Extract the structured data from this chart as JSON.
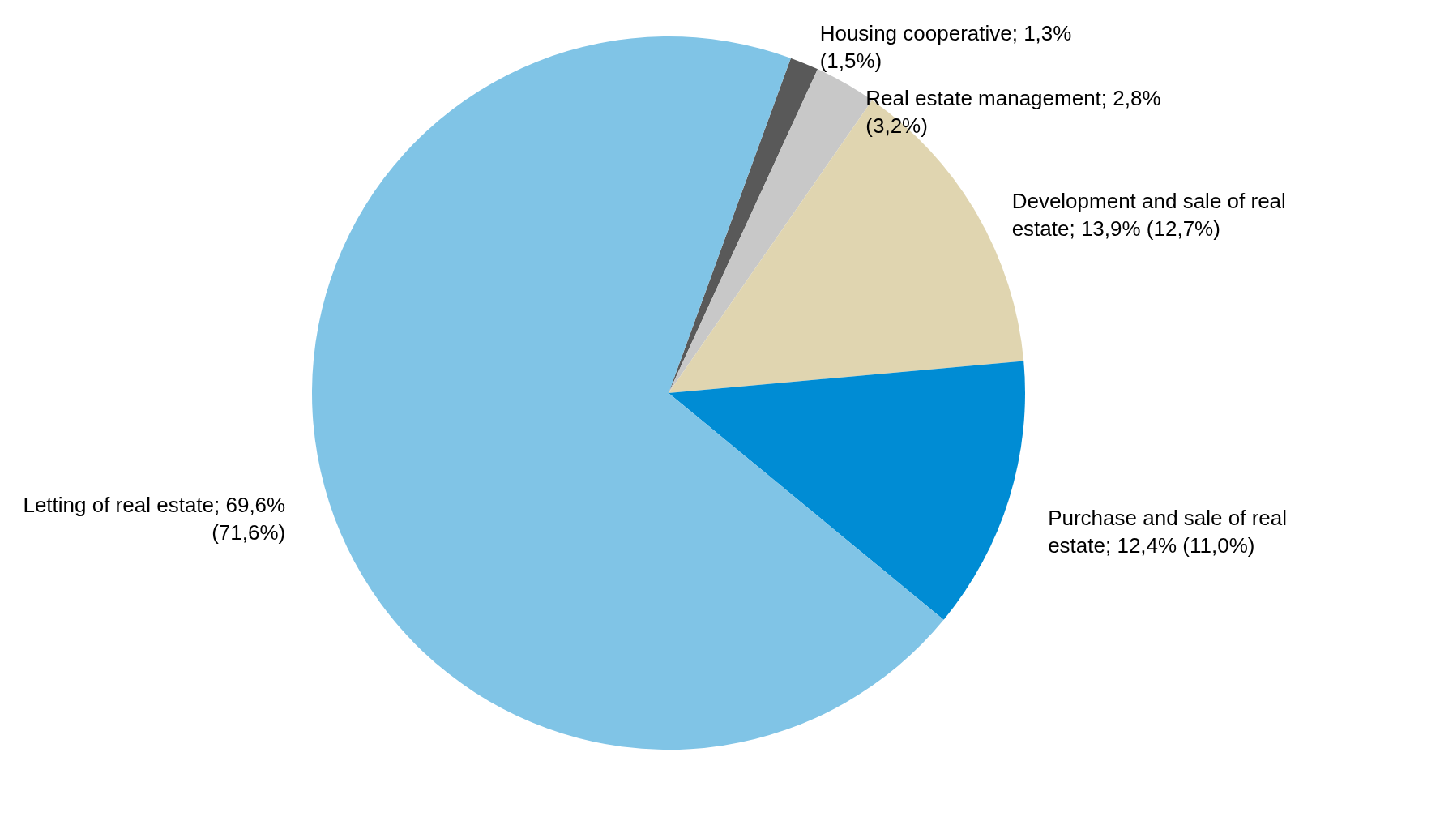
{
  "chart_data": {
    "type": "pie",
    "categories": [
      "Housing cooperative",
      "Real estate management",
      "Development and sale of real estate",
      "Purchase and sale of real estate",
      "Letting of real estate"
    ],
    "values": [
      1.3,
      2.8,
      13.9,
      12.4,
      69.6
    ],
    "value_labels": [
      "1,3% (1,5%)",
      "2,8% (3,2%)",
      "13,9% (12,7%)",
      "12,4% (11,0%)",
      "69,6% (71,6%)"
    ],
    "colors": [
      "#595959",
      "#c8c8c8",
      "#e0d5b0",
      "#008cd4",
      "#80c4e6"
    ],
    "legend": false
  }
}
